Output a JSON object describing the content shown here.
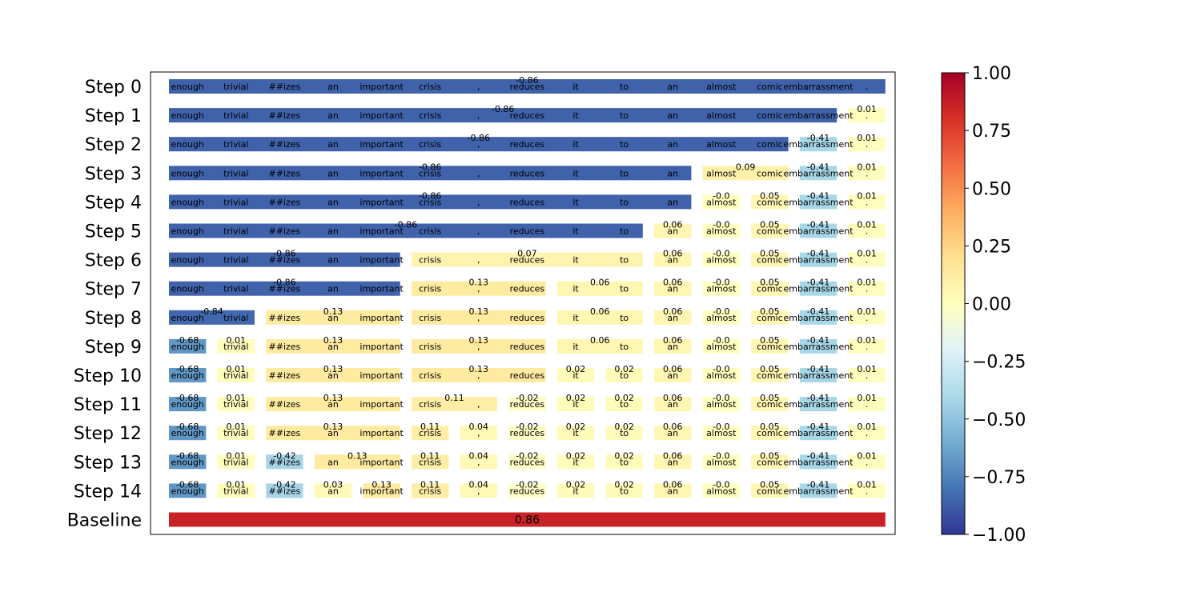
{
  "chart_data": {
    "type": "heatmap",
    "tokens": [
      "enough",
      "trivial",
      "##izes",
      "an",
      "important",
      "crisis",
      ",",
      "reduces",
      "it",
      "to",
      "an",
      "almost",
      "comic",
      "embarrassment",
      "."
    ],
    "rows": [
      {
        "label": "Step 0",
        "groups": [
          {
            "start": 0,
            "end": 14,
            "value": -0.86,
            "value_label": "-0.86"
          }
        ]
      },
      {
        "label": "Step 1",
        "groups": [
          {
            "start": 0,
            "end": 13,
            "value": -0.86,
            "value_label": "-0.86"
          },
          {
            "start": 14,
            "end": 14,
            "value": 0.01,
            "value_label": "0.01"
          }
        ]
      },
      {
        "label": "Step 2",
        "groups": [
          {
            "start": 0,
            "end": 12,
            "value": -0.86,
            "value_label": "-0.86"
          },
          {
            "start": 13,
            "end": 13,
            "value": -0.41,
            "value_label": "-0.41"
          },
          {
            "start": 14,
            "end": 14,
            "value": 0.01,
            "value_label": "0.01"
          }
        ]
      },
      {
        "label": "Step 3",
        "groups": [
          {
            "start": 0,
            "end": 10,
            "value": -0.86,
            "value_label": "-0.86"
          },
          {
            "start": 11,
            "end": 12,
            "value": 0.09,
            "value_label": "0.09"
          },
          {
            "start": 13,
            "end": 13,
            "value": -0.41,
            "value_label": "-0.41"
          },
          {
            "start": 14,
            "end": 14,
            "value": 0.01,
            "value_label": "0.01"
          }
        ]
      },
      {
        "label": "Step 4",
        "groups": [
          {
            "start": 0,
            "end": 10,
            "value": -0.86,
            "value_label": "-0.86"
          },
          {
            "start": 11,
            "end": 11,
            "value": -0.0,
            "value_label": "-0.0"
          },
          {
            "start": 12,
            "end": 12,
            "value": 0.05,
            "value_label": "0.05"
          },
          {
            "start": 13,
            "end": 13,
            "value": -0.41,
            "value_label": "-0.41"
          },
          {
            "start": 14,
            "end": 14,
            "value": 0.01,
            "value_label": "0.01"
          }
        ]
      },
      {
        "label": "Step 5",
        "groups": [
          {
            "start": 0,
            "end": 9,
            "value": -0.86,
            "value_label": "-0.86"
          },
          {
            "start": 10,
            "end": 10,
            "value": 0.06,
            "value_label": "0.06"
          },
          {
            "start": 11,
            "end": 11,
            "value": -0.0,
            "value_label": "-0.0"
          },
          {
            "start": 12,
            "end": 12,
            "value": 0.05,
            "value_label": "0.05"
          },
          {
            "start": 13,
            "end": 13,
            "value": -0.41,
            "value_label": "-0.41"
          },
          {
            "start": 14,
            "end": 14,
            "value": 0.01,
            "value_label": "0.01"
          }
        ]
      },
      {
        "label": "Step 6",
        "groups": [
          {
            "start": 0,
            "end": 4,
            "value": -0.86,
            "value_label": "-0.86"
          },
          {
            "start": 5,
            "end": 9,
            "value": 0.07,
            "value_label": "0.07"
          },
          {
            "start": 10,
            "end": 10,
            "value": 0.06,
            "value_label": "0.06"
          },
          {
            "start": 11,
            "end": 11,
            "value": -0.0,
            "value_label": "-0.0"
          },
          {
            "start": 12,
            "end": 12,
            "value": 0.05,
            "value_label": "0.05"
          },
          {
            "start": 13,
            "end": 13,
            "value": -0.41,
            "value_label": "-0.41"
          },
          {
            "start": 14,
            "end": 14,
            "value": 0.01,
            "value_label": "0.01"
          }
        ]
      },
      {
        "label": "Step 7",
        "groups": [
          {
            "start": 0,
            "end": 4,
            "value": -0.86,
            "value_label": "-0.86"
          },
          {
            "start": 5,
            "end": 7,
            "value": 0.13,
            "value_label": "0.13"
          },
          {
            "start": 8,
            "end": 9,
            "value": 0.06,
            "value_label": "0.06"
          },
          {
            "start": 10,
            "end": 10,
            "value": 0.06,
            "value_label": "0.06"
          },
          {
            "start": 11,
            "end": 11,
            "value": -0.0,
            "value_label": "-0.0"
          },
          {
            "start": 12,
            "end": 12,
            "value": 0.05,
            "value_label": "0.05"
          },
          {
            "start": 13,
            "end": 13,
            "value": -0.41,
            "value_label": "-0.41"
          },
          {
            "start": 14,
            "end": 14,
            "value": 0.01,
            "value_label": "0.01"
          }
        ]
      },
      {
        "label": "Step 8",
        "groups": [
          {
            "start": 0,
            "end": 1,
            "value": -0.84,
            "value_label": "-0.84"
          },
          {
            "start": 2,
            "end": 4,
            "value": 0.13,
            "value_label": "0.13"
          },
          {
            "start": 5,
            "end": 7,
            "value": 0.13,
            "value_label": "0.13"
          },
          {
            "start": 8,
            "end": 9,
            "value": 0.06,
            "value_label": "0.06"
          },
          {
            "start": 10,
            "end": 10,
            "value": 0.06,
            "value_label": "0.06"
          },
          {
            "start": 11,
            "end": 11,
            "value": -0.0,
            "value_label": "-0.0"
          },
          {
            "start": 12,
            "end": 12,
            "value": 0.05,
            "value_label": "0.05"
          },
          {
            "start": 13,
            "end": 13,
            "value": -0.41,
            "value_label": "-0.41"
          },
          {
            "start": 14,
            "end": 14,
            "value": 0.01,
            "value_label": "0.01"
          }
        ]
      },
      {
        "label": "Step 9",
        "groups": [
          {
            "start": 0,
            "end": 0,
            "value": -0.68,
            "value_label": "-0.68"
          },
          {
            "start": 1,
            "end": 1,
            "value": 0.01,
            "value_label": "0.01"
          },
          {
            "start": 2,
            "end": 4,
            "value": 0.13,
            "value_label": "0.13"
          },
          {
            "start": 5,
            "end": 7,
            "value": 0.13,
            "value_label": "0.13"
          },
          {
            "start": 8,
            "end": 9,
            "value": 0.06,
            "value_label": "0.06"
          },
          {
            "start": 10,
            "end": 10,
            "value": 0.06,
            "value_label": "0.06"
          },
          {
            "start": 11,
            "end": 11,
            "value": -0.0,
            "value_label": "-0.0"
          },
          {
            "start": 12,
            "end": 12,
            "value": 0.05,
            "value_label": "0.05"
          },
          {
            "start": 13,
            "end": 13,
            "value": -0.41,
            "value_label": "-0.41"
          },
          {
            "start": 14,
            "end": 14,
            "value": 0.01,
            "value_label": "0.01"
          }
        ]
      },
      {
        "label": "Step 10",
        "groups": [
          {
            "start": 0,
            "end": 0,
            "value": -0.68,
            "value_label": "-0.68"
          },
          {
            "start": 1,
            "end": 1,
            "value": 0.01,
            "value_label": "0.01"
          },
          {
            "start": 2,
            "end": 4,
            "value": 0.13,
            "value_label": "0.13"
          },
          {
            "start": 5,
            "end": 7,
            "value": 0.13,
            "value_label": "0.13"
          },
          {
            "start": 8,
            "end": 8,
            "value": 0.02,
            "value_label": "0.02"
          },
          {
            "start": 9,
            "end": 9,
            "value": 0.02,
            "value_label": "0.02"
          },
          {
            "start": 10,
            "end": 10,
            "value": 0.06,
            "value_label": "0.06"
          },
          {
            "start": 11,
            "end": 11,
            "value": -0.0,
            "value_label": "-0.0"
          },
          {
            "start": 12,
            "end": 12,
            "value": 0.05,
            "value_label": "0.05"
          },
          {
            "start": 13,
            "end": 13,
            "value": -0.41,
            "value_label": "-0.41"
          },
          {
            "start": 14,
            "end": 14,
            "value": 0.01,
            "value_label": "0.01"
          }
        ]
      },
      {
        "label": "Step 11",
        "groups": [
          {
            "start": 0,
            "end": 0,
            "value": -0.68,
            "value_label": "-0.68"
          },
          {
            "start": 1,
            "end": 1,
            "value": 0.01,
            "value_label": "0.01"
          },
          {
            "start": 2,
            "end": 4,
            "value": 0.13,
            "value_label": "0.13"
          },
          {
            "start": 5,
            "end": 6,
            "value": 0.11,
            "value_label": "0.11"
          },
          {
            "start": 7,
            "end": 7,
            "value": -0.02,
            "value_label": "-0.02"
          },
          {
            "start": 8,
            "end": 8,
            "value": 0.02,
            "value_label": "0.02"
          },
          {
            "start": 9,
            "end": 9,
            "value": 0.02,
            "value_label": "0.02"
          },
          {
            "start": 10,
            "end": 10,
            "value": 0.06,
            "value_label": "0.06"
          },
          {
            "start": 11,
            "end": 11,
            "value": -0.0,
            "value_label": "-0.0"
          },
          {
            "start": 12,
            "end": 12,
            "value": 0.05,
            "value_label": "0.05"
          },
          {
            "start": 13,
            "end": 13,
            "value": -0.41,
            "value_label": "-0.41"
          },
          {
            "start": 14,
            "end": 14,
            "value": 0.01,
            "value_label": "0.01"
          }
        ]
      },
      {
        "label": "Step 12",
        "groups": [
          {
            "start": 0,
            "end": 0,
            "value": -0.68,
            "value_label": "-0.68"
          },
          {
            "start": 1,
            "end": 1,
            "value": 0.01,
            "value_label": "0.01"
          },
          {
            "start": 2,
            "end": 4,
            "value": 0.13,
            "value_label": "0.13"
          },
          {
            "start": 5,
            "end": 5,
            "value": 0.11,
            "value_label": "0.11"
          },
          {
            "start": 6,
            "end": 6,
            "value": 0.04,
            "value_label": "0.04"
          },
          {
            "start": 7,
            "end": 7,
            "value": -0.02,
            "value_label": "-0.02"
          },
          {
            "start": 8,
            "end": 8,
            "value": 0.02,
            "value_label": "0.02"
          },
          {
            "start": 9,
            "end": 9,
            "value": 0.02,
            "value_label": "0.02"
          },
          {
            "start": 10,
            "end": 10,
            "value": 0.06,
            "value_label": "0.06"
          },
          {
            "start": 11,
            "end": 11,
            "value": -0.0,
            "value_label": "-0.0"
          },
          {
            "start": 12,
            "end": 12,
            "value": 0.05,
            "value_label": "0.05"
          },
          {
            "start": 13,
            "end": 13,
            "value": -0.41,
            "value_label": "-0.41"
          },
          {
            "start": 14,
            "end": 14,
            "value": 0.01,
            "value_label": "0.01"
          }
        ]
      },
      {
        "label": "Step 13",
        "groups": [
          {
            "start": 0,
            "end": 0,
            "value": -0.68,
            "value_label": "-0.68"
          },
          {
            "start": 1,
            "end": 1,
            "value": 0.01,
            "value_label": "0.01"
          },
          {
            "start": 2,
            "end": 2,
            "value": -0.42,
            "value_label": "-0.42"
          },
          {
            "start": 3,
            "end": 4,
            "value": 0.13,
            "value_label": "0.13"
          },
          {
            "start": 5,
            "end": 5,
            "value": 0.11,
            "value_label": "0.11"
          },
          {
            "start": 6,
            "end": 6,
            "value": 0.04,
            "value_label": "0.04"
          },
          {
            "start": 7,
            "end": 7,
            "value": -0.02,
            "value_label": "-0.02"
          },
          {
            "start": 8,
            "end": 8,
            "value": 0.02,
            "value_label": "0.02"
          },
          {
            "start": 9,
            "end": 9,
            "value": 0.02,
            "value_label": "0.02"
          },
          {
            "start": 10,
            "end": 10,
            "value": 0.06,
            "value_label": "0.06"
          },
          {
            "start": 11,
            "end": 11,
            "value": -0.0,
            "value_label": "-0.0"
          },
          {
            "start": 12,
            "end": 12,
            "value": 0.05,
            "value_label": "0.05"
          },
          {
            "start": 13,
            "end": 13,
            "value": -0.41,
            "value_label": "-0.41"
          },
          {
            "start": 14,
            "end": 14,
            "value": 0.01,
            "value_label": "0.01"
          }
        ]
      },
      {
        "label": "Step 14",
        "groups": [
          {
            "start": 0,
            "end": 0,
            "value": -0.68,
            "value_label": "-0.68"
          },
          {
            "start": 1,
            "end": 1,
            "value": 0.01,
            "value_label": "0.01"
          },
          {
            "start": 2,
            "end": 2,
            "value": -0.42,
            "value_label": "-0.42"
          },
          {
            "start": 3,
            "end": 3,
            "value": 0.03,
            "value_label": "0.03"
          },
          {
            "start": 4,
            "end": 4,
            "value": 0.13,
            "value_label": "0.13"
          },
          {
            "start": 5,
            "end": 5,
            "value": 0.11,
            "value_label": "0.11"
          },
          {
            "start": 6,
            "end": 6,
            "value": 0.04,
            "value_label": "0.04"
          },
          {
            "start": 7,
            "end": 7,
            "value": -0.02,
            "value_label": "-0.02"
          },
          {
            "start": 8,
            "end": 8,
            "value": 0.02,
            "value_label": "0.02"
          },
          {
            "start": 9,
            "end": 9,
            "value": 0.02,
            "value_label": "0.02"
          },
          {
            "start": 10,
            "end": 10,
            "value": 0.06,
            "value_label": "0.06"
          },
          {
            "start": 11,
            "end": 11,
            "value": -0.0,
            "value_label": "-0.0"
          },
          {
            "start": 12,
            "end": 12,
            "value": 0.05,
            "value_label": "0.05"
          },
          {
            "start": 13,
            "end": 13,
            "value": -0.41,
            "value_label": "-0.41"
          },
          {
            "start": 14,
            "end": 14,
            "value": 0.01,
            "value_label": "0.01"
          }
        ]
      }
    ],
    "baseline": {
      "label": "Baseline",
      "value": 0.86,
      "value_label": "0.86"
    },
    "colorbar": {
      "colormap": "RdYlBu_r",
      "range": [
        -1.0,
        1.0
      ],
      "ticks": [
        {
          "value": 1.0,
          "label": "1.00"
        },
        {
          "value": 0.75,
          "label": "0.75"
        },
        {
          "value": 0.5,
          "label": "0.50"
        },
        {
          "value": 0.25,
          "label": "0.25"
        },
        {
          "value": 0.0,
          "label": "0.00"
        },
        {
          "value": -0.25,
          "label": "−0.25"
        },
        {
          "value": -0.5,
          "label": "−0.50"
        },
        {
          "value": -0.75,
          "label": "−0.75"
        },
        {
          "value": -1.0,
          "label": "−1.00"
        }
      ]
    }
  }
}
